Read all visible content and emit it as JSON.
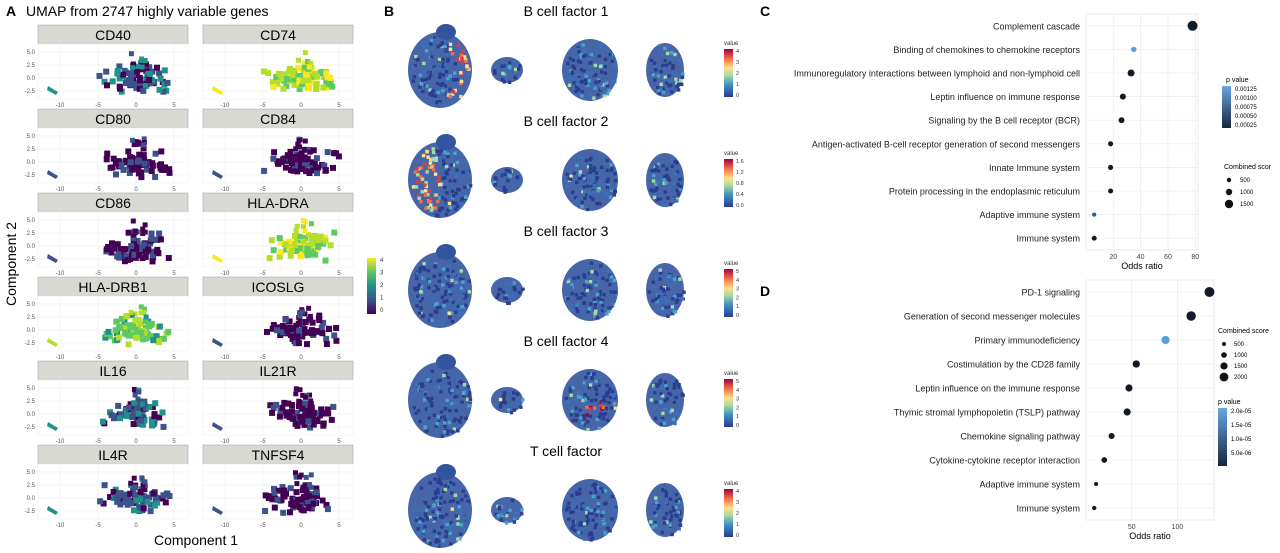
{
  "panel_a": {
    "letter": "A",
    "title": "UMAP from 2747 highly variable genes",
    "xlabel": "Component 1",
    "ylabel": "Component 2",
    "genes": [
      "CD40",
      "CD74",
      "CD80",
      "CD84",
      "CD86",
      "HLA-DRA",
      "HLA-DRB1",
      "ICOSLG",
      "IL16",
      "IL21R",
      "IL4R",
      "TNFSF4"
    ],
    "y_ticks": [
      "5.0",
      "2.5",
      "0.0",
      "-2.5"
    ],
    "x_ticks": [
      "-10",
      "-5",
      "0",
      "5"
    ],
    "colorbar_ticks": [
      "4",
      "3",
      "2",
      "1",
      "0"
    ]
  },
  "panel_b": {
    "letter": "B",
    "factors": [
      {
        "title": "B cell factor 1",
        "legend_title": "value",
        "ticks": [
          "4",
          "3",
          "2",
          "1",
          "0"
        ]
      },
      {
        "title": "B cell factor 2",
        "legend_title": "value",
        "ticks": [
          "1.6",
          "1.2",
          "0.8",
          "0.4",
          "0.0"
        ]
      },
      {
        "title": "B cell factor 3",
        "legend_title": "value",
        "ticks": [
          "5",
          "4",
          "3",
          "2",
          "1",
          "0"
        ]
      },
      {
        "title": "B cell factor 4",
        "legend_title": "value",
        "ticks": [
          "5",
          "4",
          "3",
          "2",
          "1",
          "0"
        ]
      },
      {
        "title": "T cell factor",
        "legend_title": "value",
        "ticks": [
          "4",
          "3",
          "2",
          "1",
          "0"
        ]
      }
    ]
  },
  "chart_data": [
    {
      "panel": "C",
      "type": "scatter",
      "xlabel": "Odds ratio",
      "xlim": [
        0,
        82
      ],
      "x_ticks": [
        20,
        40,
        60,
        80
      ],
      "categories": [
        "Complement cascade",
        "Binding of chemokines to chemokine receptors",
        "Immunoregulatory interactions between lymphoid and non-lymphoid cell",
        "Leptin influence on immune response",
        "Signaling by the B cell receptor (BCR)",
        "Antigen-activated B-cell receptor generation of second messengers",
        "Innate Immune system",
        "Protein processing in the endoplasmic reticulum",
        "Adaptive immune system",
        "Immune system"
      ],
      "x": [
        78,
        35,
        33,
        27,
        26,
        18,
        18,
        18,
        6,
        6
      ],
      "combined_score": [
        1700,
        300,
        650,
        420,
        400,
        250,
        260,
        240,
        130,
        230
      ],
      "p_value": [
        1e-05,
        0.00125,
        1e-05,
        1e-05,
        1e-05,
        1e-05,
        1e-05,
        1e-05,
        0.0005,
        1e-05
      ],
      "legends": {
        "color_title": "p value",
        "color_ticks": [
          "0.00125",
          "0.00100",
          "0.00075",
          "0.00050",
          "0.00025"
        ],
        "size_title": "Combined scor",
        "size_ticks": [
          "500",
          "1000",
          "1500"
        ]
      },
      "legend_placement": "right",
      "grid": true
    },
    {
      "panel": "D",
      "type": "scatter",
      "xlabel": "Odds ratio",
      "xlim": [
        0,
        140
      ],
      "x_ticks": [
        50,
        100
      ],
      "categories": [
        "PD-1 signaling",
        "Generation of second messenger molecules",
        "Primary immunodeficiency",
        "Costimulation by the CD28 family",
        "Leptin influence  on the immune response",
        "Thymic stromal lymphopoietin (TSLP) pathway",
        "Chemokine signaling pathway",
        "Cytokine-cytokine receptor interaction",
        "Adaptive immune system",
        "Immune system"
      ],
      "x": [
        135,
        115,
        87,
        55,
        47,
        45,
        28,
        20,
        11,
        9
      ],
      "combined_score": [
        2300,
        2000,
        1400,
        1000,
        950,
        950,
        600,
        500,
        150,
        200
      ],
      "p_value": [
        5e-07,
        5e-07,
        1.2e-05,
        3e-06,
        2e-06,
        2e-06,
        2e-06,
        2e-06,
        2e-06,
        2e-06
      ],
      "legends": {
        "size_title": "Combined score",
        "size_ticks": [
          "500",
          "1000",
          "1500",
          "2000"
        ],
        "color_title": "p value",
        "color_ticks": [
          "2.0e-05",
          "1.5e-05",
          "1.0e-05",
          "5.0e-06"
        ]
      },
      "legend_placement": "right",
      "grid": true
    }
  ]
}
